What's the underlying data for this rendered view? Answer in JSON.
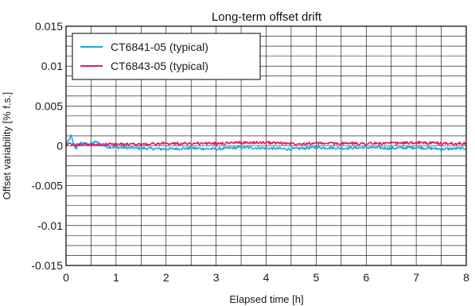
{
  "chart_data": {
    "type": "line",
    "title": "Long-term offset drift",
    "xlabel": "Elapsed time [h]",
    "ylabel": "Offset variability [% f.s.]",
    "xlim": [
      0,
      8
    ],
    "ylim": [
      -0.015,
      0.015
    ],
    "x_ticks": [
      0,
      1,
      2,
      3,
      4,
      5,
      6,
      7,
      8
    ],
    "x_tick_labels": [
      "0",
      "1",
      "2",
      "3",
      "4",
      "5",
      "6",
      "7",
      "8"
    ],
    "y_ticks": [
      0.015,
      0.01,
      0.005,
      0,
      -0.005,
      -0.01,
      -0.015
    ],
    "y_tick_labels": [
      "0.015",
      "0.01",
      "0.005",
      "0",
      "-0.005",
      "-0.01",
      "-0.015"
    ],
    "grid": true,
    "legend_position": "top-left",
    "series": [
      {
        "name": "CT6841-05 (typical)",
        "color": "#1ea7e1",
        "x": [
          0,
          0.05,
          0.1,
          0.15,
          0.2,
          0.3,
          0.4,
          0.5,
          0.6,
          0.8,
          1,
          1.5,
          2,
          2.5,
          3,
          3.5,
          4,
          4.5,
          5,
          5.5,
          6,
          6.5,
          7,
          7.5,
          8
        ],
        "y": [
          0.0002,
          0.0006,
          0.0013,
          0.0001,
          -0.0003,
          0.0004,
          0.0002,
          0.0003,
          0.0005,
          -0.0001,
          -0.0002,
          -0.0003,
          -0.0004,
          -0.0003,
          -0.0004,
          -0.0002,
          -0.0003,
          -0.0004,
          -0.0002,
          -0.0003,
          -0.0002,
          -0.0003,
          -0.0002,
          -0.0004,
          -0.0003
        ]
      },
      {
        "name": "CT6843-05 (typical)",
        "color": "#d6206e",
        "x": [
          0,
          0.1,
          0.2,
          0.4,
          0.6,
          0.8,
          1,
          1.5,
          2,
          2.5,
          3,
          3.5,
          4,
          4.5,
          5,
          5.5,
          6,
          6.5,
          7,
          7.5,
          8
        ],
        "y": [
          0.0001,
          0.0002,
          0.0001,
          0.0002,
          0.0001,
          0.0002,
          0.0002,
          0.0002,
          0.0003,
          0.0003,
          0.0003,
          0.0004,
          0.0004,
          0.0003,
          0.0003,
          0.0003,
          0.0003,
          0.0003,
          0.0004,
          0.0003,
          0.0003
        ]
      }
    ]
  }
}
